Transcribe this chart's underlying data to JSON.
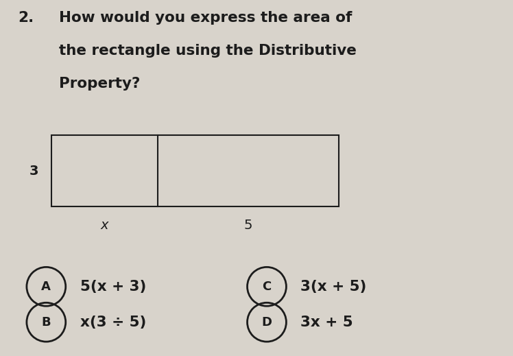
{
  "background_color": "#d8d3cb",
  "question_number": "2.",
  "question_text_line1": "How would you express the area of",
  "question_text_line2": "the rectangle using the Distributive",
  "question_text_line3": "Property?",
  "label_3": "3",
  "label_x": "x",
  "label_5": "5",
  "choices": [
    {
      "letter": "A",
      "text": "5(x + 3)",
      "col": 0,
      "row": 0
    },
    {
      "letter": "B",
      "text": "x(3 ÷ 5)",
      "col": 0,
      "row": 1
    },
    {
      "letter": "C",
      "text": "3(x + 5)",
      "col": 1,
      "row": 0
    },
    {
      "letter": "D",
      "text": "3x + 5",
      "col": 1,
      "row": 1
    }
  ],
  "text_color": "#1c1c1c",
  "question_fontsize": 15.5,
  "choice_fontsize": 15.5,
  "label_fontsize": 14
}
